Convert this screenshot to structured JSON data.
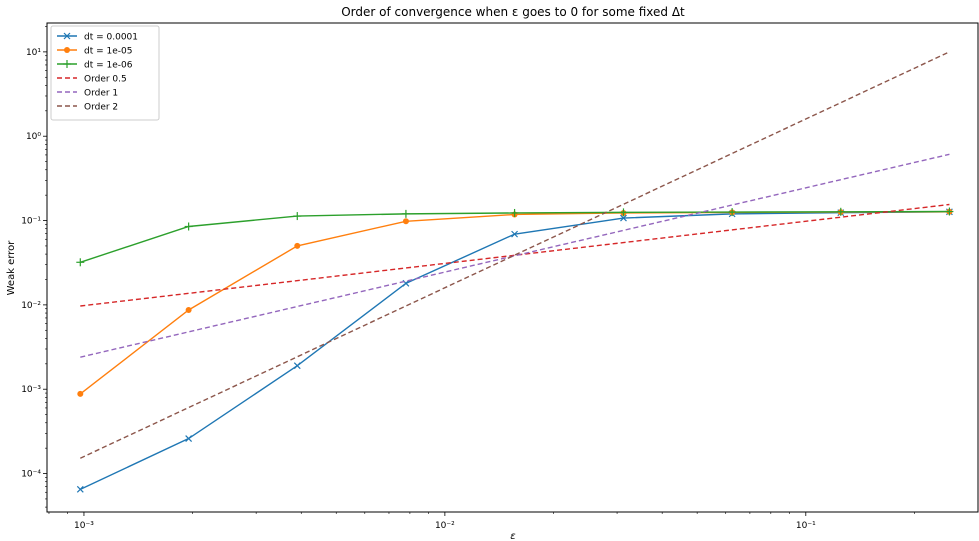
{
  "chart_data": {
    "type": "line",
    "title": "Order of convergence when ε goes to 0 for some fixed Δt",
    "xlabel": "ε",
    "ylabel": "Weak error",
    "xscale": "log",
    "yscale": "log",
    "xlim": [
      0.00079,
      0.3
    ],
    "ylim": [
      3.5e-05,
      22
    ],
    "x_ticks": [
      {
        "v": 0.001,
        "label": "10⁻³"
      },
      {
        "v": 0.01,
        "label": "10⁻²"
      },
      {
        "v": 0.1,
        "label": "10⁻¹"
      }
    ],
    "y_ticks": [
      {
        "v": 0.0001,
        "label": "10⁻⁴"
      },
      {
        "v": 0.001,
        "label": "10⁻³"
      },
      {
        "v": 0.01,
        "label": "10⁻²"
      },
      {
        "v": 0.1,
        "label": "10⁻¹"
      },
      {
        "v": 1,
        "label": "10⁰"
      },
      {
        "v": 10,
        "label": "10¹"
      }
    ],
    "grid": false,
    "legend_position": "top-left",
    "series": [
      {
        "name": "dt = 0.0001",
        "color": "#1f77b4",
        "dash": false,
        "marker": "x",
        "x": [
          0.000977,
          0.00195,
          0.0039,
          0.0078,
          0.0156,
          0.03125,
          0.0625,
          0.125,
          0.25
        ],
        "y": [
          6.5e-05,
          0.00026,
          0.0019,
          0.018,
          0.069,
          0.107,
          0.12,
          0.124,
          0.127
        ]
      },
      {
        "name": "dt = 1e-05",
        "color": "#ff7f0e",
        "dash": false,
        "marker": "o",
        "x": [
          0.000977,
          0.00195,
          0.0039,
          0.0078,
          0.0156,
          0.03125,
          0.0625,
          0.125,
          0.25
        ],
        "y": [
          0.00088,
          0.0087,
          0.05,
          0.098,
          0.118,
          0.123,
          0.125,
          0.126,
          0.127
        ]
      },
      {
        "name": "dt = 1e-06",
        "color": "#2ca02c",
        "dash": false,
        "marker": "+",
        "x": [
          0.000977,
          0.00195,
          0.0039,
          0.0078,
          0.0156,
          0.03125,
          0.0625,
          0.125,
          0.25
        ],
        "y": [
          0.032,
          0.085,
          0.113,
          0.12,
          0.123,
          0.125,
          0.126,
          0.127,
          0.128
        ]
      },
      {
        "name": "Order 0.5",
        "color": "#d62728",
        "dash": true,
        "marker": "none",
        "x": [
          0.000977,
          0.25
        ],
        "y": [
          0.0097,
          0.155
        ]
      },
      {
        "name": "Order 1",
        "color": "#9467bd",
        "dash": true,
        "marker": "none",
        "x": [
          0.000977,
          0.25
        ],
        "y": [
          0.0024,
          0.61
        ]
      },
      {
        "name": "Order 2",
        "color": "#8c564b",
        "dash": true,
        "marker": "none",
        "x": [
          0.000977,
          0.25
        ],
        "y": [
          0.000152,
          10.0
        ]
      }
    ]
  }
}
